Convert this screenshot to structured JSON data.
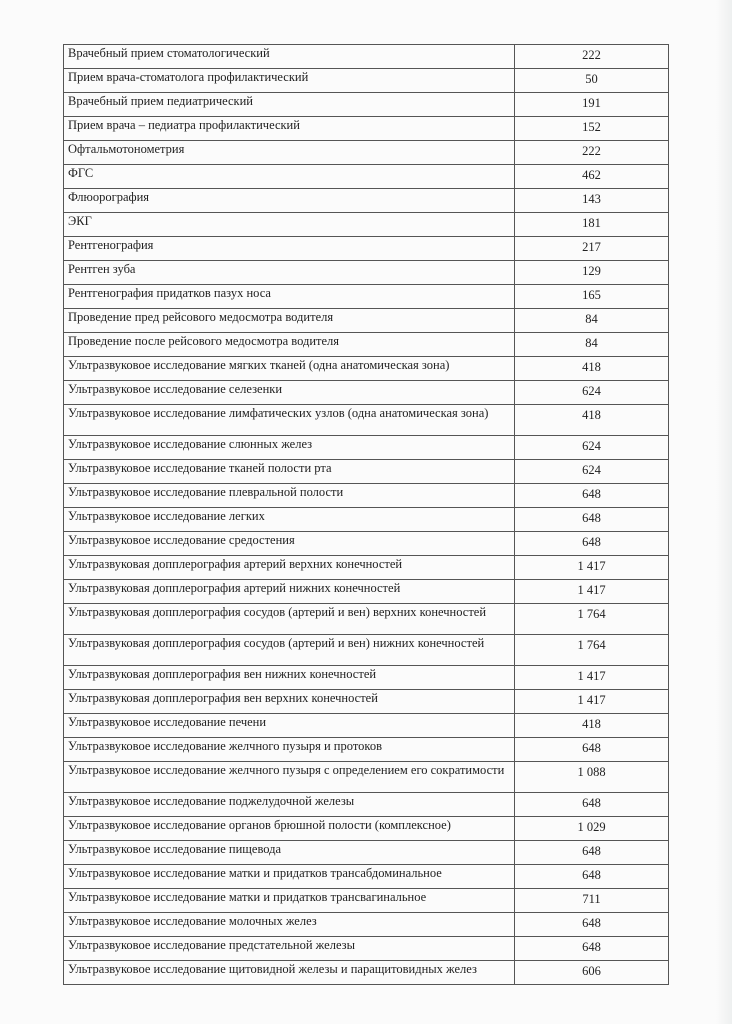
{
  "table": {
    "rows": [
      {
        "service": "Врачебный прием стоматологический",
        "price": "222"
      },
      {
        "service": "Прием врача-стоматолога профилактический",
        "price": "50"
      },
      {
        "service": "Врачебный прием педиатрический",
        "price": "191"
      },
      {
        "service": "Прием  врача – педиатра профилактический",
        "price": "152"
      },
      {
        "service": "Офтальмотонометрия",
        "price": "222"
      },
      {
        "service": "ФГС",
        "price": "462"
      },
      {
        "service": "Флюорография",
        "price": "143"
      },
      {
        "service": "ЭКГ",
        "price": "181"
      },
      {
        "service": "Рентгенография",
        "price": "217"
      },
      {
        "service": "Рентген зуба",
        "price": "129"
      },
      {
        "service": "Рентгенография придатков  пазух носа",
        "price": "165"
      },
      {
        "service": "Проведение пред рейсового медосмотра водителя",
        "price": "84"
      },
      {
        "service": "Проведение после рейсового медосмотра водителя",
        "price": "84"
      },
      {
        "service": "Ультразвуковое исследование мягких тканей (одна анатомическая зона)",
        "price": "418"
      },
      {
        "service": "Ультразвуковое исследование селезенки",
        "price": "624"
      },
      {
        "service": "Ультразвуковое исследование лимфатических узлов (одна анатомическая зона)",
        "price": "418"
      },
      {
        "service": "Ультразвуковое исследование слюнных желез",
        "price": "624"
      },
      {
        "service": "Ультразвуковое исследование тканей полости рта",
        "price": "624"
      },
      {
        "service": "Ультразвуковое исследование плевральной полости",
        "price": "648"
      },
      {
        "service": "Ультразвуковое исследование легких",
        "price": "648"
      },
      {
        "service": "Ультразвуковое исследование средостения",
        "price": "648"
      },
      {
        "service": "Ультразвуковая допплерография артерий верхних конечностей",
        "price": "1 417"
      },
      {
        "service": "Ультразвуковая допплерография артерий нижних конечностей",
        "price": "1 417"
      },
      {
        "service": "Ультразвуковая допплерография сосудов (артерий и вен) верхних конечностей",
        "price": "1 764"
      },
      {
        "service": "Ультразвуковая допплерография сосудов (артерий и вен) нижних конечностей",
        "price": "1 764"
      },
      {
        "service": "Ультразвуковая допплерография вен нижних конечностей",
        "price": "1 417"
      },
      {
        "service": "Ультразвуковая допплерография вен верхних конечностей",
        "price": "1 417"
      },
      {
        "service": "Ультразвуковое исследование печени",
        "price": "418"
      },
      {
        "service": "Ультразвуковое исследование желчного пузыря и протоков",
        "price": "648"
      },
      {
        "service": "Ультразвуковое исследование желчного пузыря с определением его сократимости",
        "price": "1 088"
      },
      {
        "service": "Ультразвуковое исследование поджелудочной железы",
        "price": "648"
      },
      {
        "service": "Ультразвуковое исследование органов брюшной полости (комплексное)",
        "price": "1 029"
      },
      {
        "service": "Ультразвуковое исследование пищевода",
        "price": "648"
      },
      {
        "service": "Ультразвуковое исследование матки и придатков трансабдоминальное",
        "price": "648"
      },
      {
        "service": "Ультразвуковое исследование матки и придатков трансвагинальное",
        "price": "711"
      },
      {
        "service": "Ультразвуковое исследование молочных желез",
        "price": "648"
      },
      {
        "service": "Ультразвуковое исследование предстательной железы",
        "price": "648"
      },
      {
        "service": "Ультразвуковое исследование щитовидной железы и паращитовидных желез",
        "price": "606"
      }
    ]
  }
}
